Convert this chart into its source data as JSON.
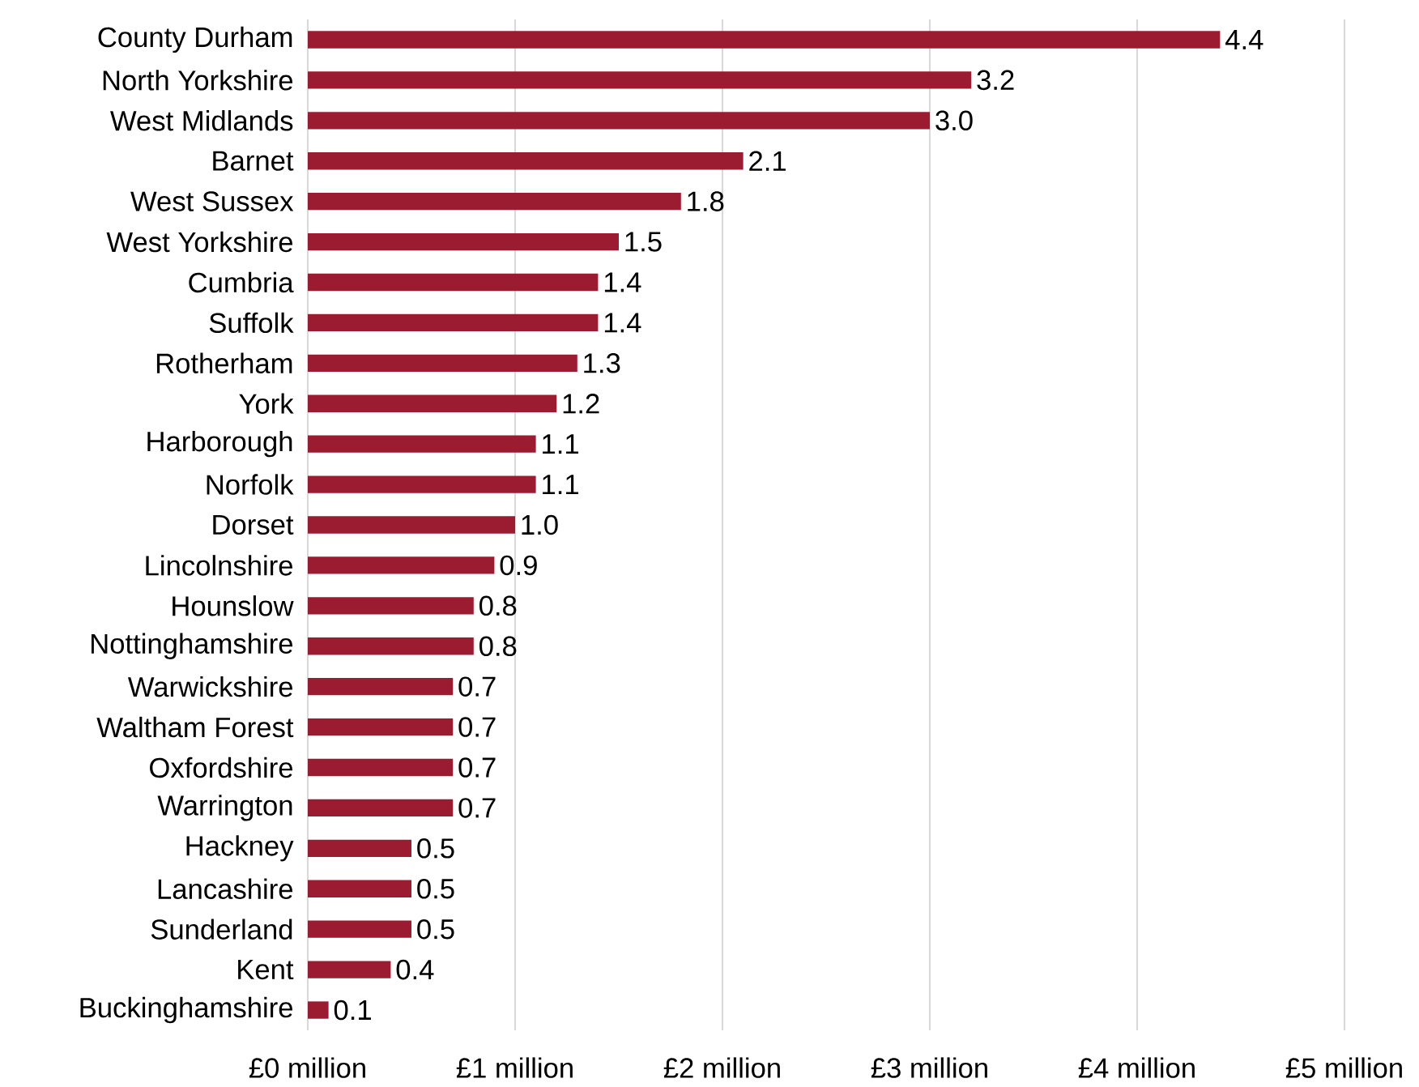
{
  "chart_data": {
    "type": "bar",
    "orientation": "horizontal",
    "color": "#9b1b30",
    "grid": "x",
    "categories": [
      "County Durham",
      "North Yorkshire",
      "West Midlands",
      "Barnet",
      "West Sussex",
      "West Yorkshire",
      "Cumbria",
      "Suffolk",
      "Rotherham",
      "York",
      "Harborough",
      "Norfolk",
      "Dorset",
      "Lincolnshire",
      "Hounslow",
      "Nottinghamshire",
      "Warwickshire",
      "Waltham Forest",
      "Oxfordshire",
      "Warrington",
      "Hackney",
      "Lancashire",
      "Sunderland",
      "Kent",
      "Buckinghamshire"
    ],
    "values": [
      4.4,
      3.2,
      3.0,
      2.1,
      1.8,
      1.5,
      1.4,
      1.4,
      1.3,
      1.2,
      1.1,
      1.1,
      1.0,
      0.9,
      0.8,
      0.8,
      0.7,
      0.7,
      0.7,
      0.7,
      0.5,
      0.5,
      0.5,
      0.4,
      0.1
    ],
    "value_labels": [
      "4.4",
      "3.2",
      "3.0",
      "2.1",
      "1.8",
      "1.5",
      "1.4",
      "1.4",
      "1.3",
      "1.2",
      "1.1",
      "1.1",
      "1.0",
      "0.9",
      "0.8",
      "0.8",
      "0.7",
      "0.7",
      "0.7",
      "0.7",
      "0.5",
      "0.5",
      "0.5",
      "0.4",
      "0.1"
    ],
    "xlim": [
      0,
      5
    ],
    "xticks": [
      {
        "value": 0,
        "label": "£0 million"
      },
      {
        "value": 1,
        "label": "£1 million"
      },
      {
        "value": 2,
        "label": "£2 million"
      },
      {
        "value": 3,
        "label": "£3 million"
      },
      {
        "value": 4,
        "label": "£4 million"
      },
      {
        "value": 5,
        "label": "£5 million"
      }
    ]
  }
}
